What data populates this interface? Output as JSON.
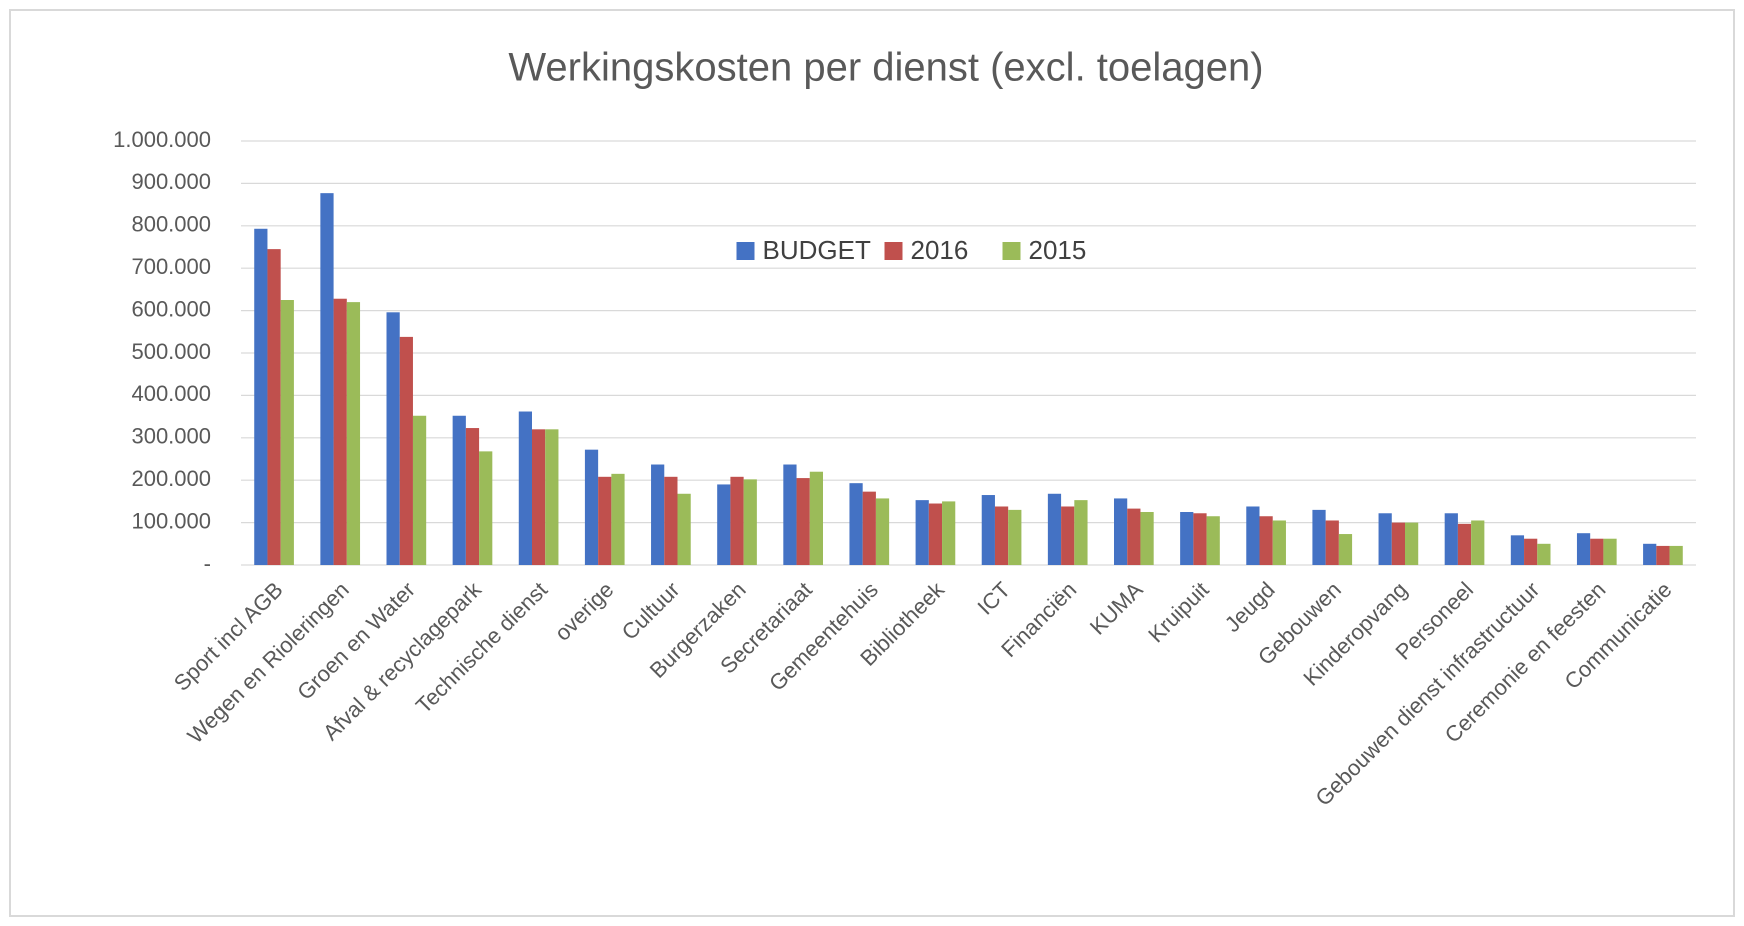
{
  "chart_data": {
    "type": "bar",
    "title": "Werkingskosten per dienst (excl. toelagen)",
    "categories": [
      "Sport incl AGB",
      "Wegen en Rioleringen",
      "Groen en Water",
      "Afval & recyclagepark",
      "Technische dienst",
      "overige",
      "Cultuur",
      "Burgerzaken",
      "Secretariaat",
      "Gemeentehuis",
      "Bibliotheek",
      "ICT",
      "Financiën",
      "KUMA",
      "Kruipuit",
      "Jeugd",
      "Gebouwen",
      "Kinderopvang",
      "Personeel",
      "Gebouwen dienst infrastructuur",
      "Ceremonie en feesten",
      "Communicatie"
    ],
    "series": [
      {
        "name": "BUDGET",
        "color": "#4472c4",
        "values": [
          793000,
          877000,
          596000,
          352000,
          362000,
          272000,
          237000,
          190000,
          237000,
          193000,
          153000,
          165000,
          168000,
          157000,
          125000,
          138000,
          130000,
          122000,
          122000,
          70000,
          75000,
          50000
        ]
      },
      {
        "name": "2016",
        "color": "#c0504d",
        "values": [
          745000,
          628000,
          538000,
          323000,
          320000,
          208000,
          208000,
          208000,
          205000,
          173000,
          145000,
          138000,
          138000,
          133000,
          122000,
          115000,
          105000,
          100000,
          97000,
          62000,
          62000,
          45000
        ]
      },
      {
        "name": "2015",
        "color": "#9bbb59",
        "values": [
          625000,
          620000,
          352000,
          268000,
          320000,
          215000,
          168000,
          202000,
          220000,
          157000,
          150000,
          130000,
          153000,
          125000,
          115000,
          105000,
          73000,
          100000,
          105000,
          50000,
          62000,
          45000
        ]
      }
    ],
    "ylim": [
      0,
      1000000
    ],
    "yticks": [
      {
        "value": 0,
        "label": "-"
      },
      {
        "value": 100000,
        "label": "100.000"
      },
      {
        "value": 200000,
        "label": "200.000"
      },
      {
        "value": 300000,
        "label": "300.000"
      },
      {
        "value": 400000,
        "label": "400.000"
      },
      {
        "value": 500000,
        "label": "500.000"
      },
      {
        "value": 600000,
        "label": "600.000"
      },
      {
        "value": 700000,
        "label": "700.000"
      },
      {
        "value": 800000,
        "label": "800.000"
      },
      {
        "value": 900000,
        "label": "900.000"
      },
      {
        "value": 1000000,
        "label": "1.000.000"
      }
    ],
    "grid": true,
    "legend": "top-center"
  }
}
